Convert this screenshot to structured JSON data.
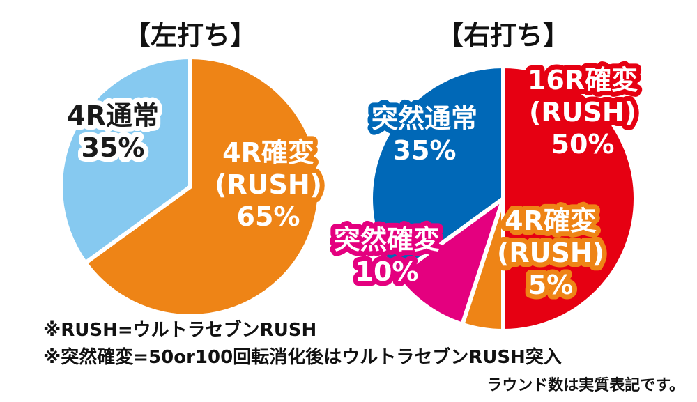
{
  "chart_data": [
    {
      "type": "pie",
      "title": "【左打ち】",
      "slices": [
        {
          "label_lines": [
            "4R確変",
            "(RUSH)",
            "65%"
          ],
          "value": 65,
          "color": "#EE8416",
          "text_color": "#FFFFFF",
          "outline_color": "#EE8416"
        },
        {
          "label_lines": [
            "4R通常",
            "35%"
          ],
          "value": 35,
          "color": "#86C9F0",
          "text_color": "#1A1A1A",
          "outline_color": "#FFFFFF"
        }
      ]
    },
    {
      "type": "pie",
      "title": "【右打ち】",
      "slices": [
        {
          "label_lines": [
            "16R確変",
            "(RUSH)",
            "50%"
          ],
          "value": 50,
          "color": "#E60012",
          "text_color": "#FFFFFF",
          "outline_color": "#E60012"
        },
        {
          "label_lines": [
            "4R確変",
            "(RUSH)",
            "5%"
          ],
          "value": 5,
          "color": "#EE8416",
          "text_color": "#FFFFFF",
          "outline_color": "#EE8416"
        },
        {
          "label_lines": [
            "突然確変",
            "10%"
          ],
          "value": 10,
          "color": "#E4007F",
          "text_color": "#FFFFFF",
          "outline_color": "#E4007F"
        },
        {
          "label_lines": [
            "突然通常",
            "35%"
          ],
          "value": 35,
          "color": "#0068B7",
          "text_color": "#FFFFFF",
          "outline_color": "#0068B7"
        }
      ]
    }
  ],
  "notes": {
    "line1": "※RUSH=ウルトラセブンRUSH",
    "line2": "※突然確変=50or100回転消化後はウルトラセブンRUSH突入",
    "line3": "ラウンド数は実質表記です。"
  }
}
